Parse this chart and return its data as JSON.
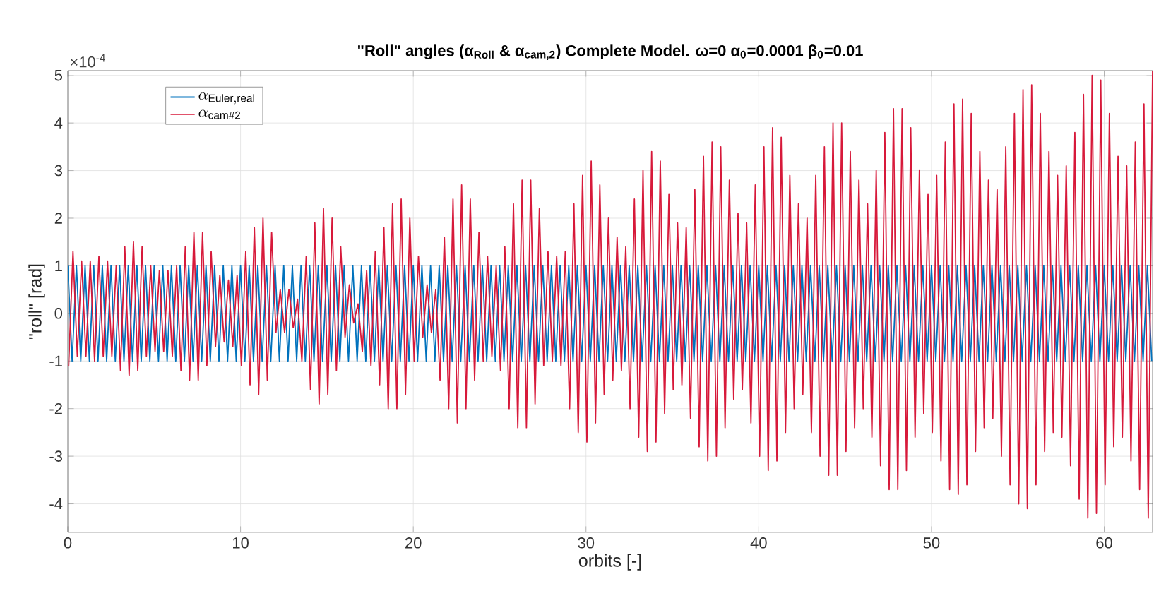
{
  "chart_data": {
    "type": "line",
    "title": "\"Roll\" angles (α$_{Roll}$ & α$_{cam,2}$) Complete Model. ω=0 α$_{0}$=0.0001 β$_{0}$=0.01",
    "xlabel": "orbits [-]",
    "ylabel": "\"roll\" [rad]",
    "annotations": [
      "×10$^{-4}$"
    ],
    "xlim": [
      0,
      62.8
    ],
    "ylim": [
      -4.6,
      5.1
    ],
    "xticks": [
      0,
      10,
      20,
      30,
      40,
      50,
      60
    ],
    "yticks": [
      -4,
      -3,
      -2,
      -1,
      0,
      1,
      2,
      3,
      4,
      5
    ],
    "grid": true,
    "legend": "top left",
    "line_style": "solid",
    "series": [
      {
        "name": "\\alpha_{\\mathrm{Euler,real}}",
        "color": "#0072bd",
        "x": [
          0,
          0.25,
          0.5,
          0.75,
          1,
          1.25,
          1.5,
          1.75,
          2,
          2.25,
          2.5,
          2.75,
          3,
          3.25,
          3.5,
          3.75,
          4,
          4.25,
          4.5,
          4.75,
          5,
          5.25,
          5.5,
          5.75,
          6,
          6.25,
          6.5,
          6.75,
          7,
          7.25,
          7.5,
          7.75,
          8,
          8.25,
          8.5,
          8.75,
          9,
          9.25,
          9.5,
          9.75,
          10,
          10.25,
          10.5,
          10.75,
          11,
          11.25,
          11.5,
          11.75,
          12,
          12.25,
          12.5,
          12.75,
          13,
          13.25,
          13.5,
          13.75,
          14,
          14.25,
          14.5,
          14.75,
          15,
          15.25,
          15.5,
          15.75,
          16,
          16.25,
          16.5,
          16.75,
          17,
          17.25,
          17.5,
          17.75,
          18,
          18.25,
          18.5,
          18.75,
          19,
          19.25,
          19.5,
          19.75,
          20,
          20.25,
          20.5,
          20.75,
          21,
          21.25,
          21.5,
          21.75,
          22,
          22.25,
          22.5,
          22.75,
          23,
          23.25,
          23.5,
          23.75,
          24,
          24.25,
          24.5,
          24.75,
          25,
          25.25,
          25.5,
          25.75,
          26,
          26.25,
          26.5,
          26.75,
          27,
          27.25,
          27.5,
          27.75,
          28,
          28.25,
          28.5,
          28.75,
          29,
          29.25,
          29.5,
          29.75,
          30,
          30.25,
          30.5,
          30.75,
          31,
          31.25,
          31.5,
          31.75,
          32,
          32.25,
          32.5,
          32.75,
          33,
          33.25,
          33.5,
          33.75,
          34,
          34.25,
          34.5,
          34.75,
          35,
          35.25,
          35.5,
          35.75,
          36,
          36.25,
          36.5,
          36.75,
          37,
          37.25,
          37.5,
          37.75,
          38,
          38.25,
          38.5,
          38.75,
          39,
          39.25,
          39.5,
          39.75,
          40,
          40.25,
          40.5,
          40.75,
          41,
          41.25,
          41.5,
          41.75,
          42,
          42.25,
          42.5,
          42.75,
          43,
          43.25,
          43.5,
          43.75,
          44,
          44.25,
          44.5,
          44.75,
          45,
          45.25,
          45.5,
          45.75,
          46,
          46.25,
          46.5,
          46.75,
          47,
          47.25,
          47.5,
          47.75,
          48,
          48.25,
          48.5,
          48.75,
          49,
          49.25,
          49.5,
          49.75,
          50,
          50.25,
          50.5,
          50.75,
          51,
          51.25,
          51.5,
          51.75,
          52,
          52.25,
          52.5,
          52.75,
          53,
          53.25,
          53.5,
          53.75,
          54,
          54.25,
          54.5,
          54.75,
          55,
          55.25,
          55.5,
          55.75,
          56,
          56.25,
          56.5,
          56.75,
          57,
          57.25,
          57.5,
          57.75,
          58,
          58.25,
          58.5,
          58.75,
          59,
          59.25,
          59.5,
          59.75,
          60,
          60.25,
          60.5,
          60.75,
          61,
          61.25,
          61.5,
          61.75,
          62,
          62.25,
          62.5,
          62.75
        ],
        "values": [
          1,
          -1,
          1,
          -1,
          1,
          -1,
          1,
          -1,
          1,
          -1,
          1,
          -1,
          1,
          -1,
          1,
          -1,
          1,
          -1,
          1,
          -1,
          1,
          -1,
          1,
          -1,
          1,
          -1,
          1,
          -1,
          1,
          -1,
          1,
          -1,
          1,
          -1,
          1,
          -1,
          1,
          -1,
          1,
          -1,
          1,
          -1,
          1,
          -1,
          1,
          -1,
          1,
          -1,
          1,
          -1,
          1,
          -1,
          1,
          -1,
          1,
          -1,
          1,
          -1,
          1,
          -1,
          1,
          -1,
          1,
          -1,
          1,
          -1,
          1,
          -1,
          1,
          -1,
          1,
          -1,
          1,
          -1,
          1,
          -1,
          1,
          -1,
          1,
          -1,
          1,
          -1,
          1,
          -1,
          1,
          -1,
          1,
          -1,
          1,
          -1,
          1,
          -1,
          1,
          -1,
          1,
          -1,
          1,
          -1,
          1,
          -1,
          1,
          -1,
          1,
          -1,
          1,
          -1,
          1,
          -1,
          1,
          -1,
          1,
          -1,
          1,
          -1,
          1,
          -1,
          1,
          -1,
          1,
          -1,
          1,
          -1,
          1,
          -1,
          1,
          -1,
          1,
          -1,
          1,
          -1,
          1,
          -1,
          1,
          -1,
          1,
          -1,
          1,
          -1,
          1,
          -1,
          1,
          -1,
          1,
          -1,
          1,
          -1,
          1,
          -1,
          1,
          -1,
          1,
          -1,
          1,
          -1,
          1,
          -1,
          1,
          -1,
          1,
          -1,
          1,
          -1,
          1,
          -1,
          1,
          -1,
          1,
          -1,
          1,
          -1,
          1,
          -1,
          1,
          -1,
          1,
          -1,
          1,
          -1,
          1,
          -1,
          1,
          -1,
          1,
          -1,
          1,
          -1,
          1,
          -1,
          1,
          -1,
          1,
          -1,
          1,
          -1,
          1,
          -1,
          1,
          -1,
          1,
          -1,
          1,
          -1,
          1,
          -1,
          1,
          -1,
          1,
          -1,
          1,
          -1,
          1,
          -1,
          1,
          -1,
          1,
          -1,
          1,
          -1,
          1,
          -1,
          1,
          -1,
          1,
          -1,
          1,
          -1,
          1,
          -1,
          1,
          -1,
          1,
          -1,
          1,
          -1,
          1,
          -1,
          1,
          -1,
          1,
          -1,
          1,
          -1,
          1,
          -1,
          1,
          -1,
          1,
          -1,
          1,
          -1,
          1,
          -1
        ]
      },
      {
        "name": "\\alpha_{\\mathrm{cam\\#2}}",
        "color": "#d7193a",
        "x": [
          0.05,
          0.3,
          0.55,
          0.8,
          1.05,
          1.3,
          1.55,
          1.8,
          2.05,
          2.3,
          2.55,
          2.8,
          3.05,
          3.3,
          3.55,
          3.8,
          4.05,
          4.3,
          4.55,
          4.8,
          5.05,
          5.3,
          5.55,
          5.8,
          6.05,
          6.3,
          6.55,
          6.8,
          7.05,
          7.3,
          7.55,
          7.8,
          8.05,
          8.3,
          8.55,
          8.8,
          9.05,
          9.3,
          9.55,
          9.8,
          10.05,
          10.3,
          10.55,
          10.8,
          11.05,
          11.3,
          11.55,
          11.8,
          12.05,
          12.3,
          12.55,
          12.8,
          13.05,
          13.3,
          13.55,
          13.8,
          14.05,
          14.3,
          14.55,
          14.8,
          15.05,
          15.3,
          15.55,
          15.8,
          16.05,
          16.3,
          16.55,
          16.8,
          17.05,
          17.3,
          17.55,
          17.8,
          18.05,
          18.3,
          18.55,
          18.8,
          19.05,
          19.3,
          19.55,
          19.8,
          20.05,
          20.3,
          20.55,
          20.8,
          21.05,
          21.3,
          21.55,
          21.8,
          22.05,
          22.3,
          22.55,
          22.8,
          23.05,
          23.3,
          23.55,
          23.8,
          24.05,
          24.3,
          24.55,
          24.8,
          25.05,
          25.3,
          25.55,
          25.8,
          26.05,
          26.3,
          26.55,
          26.8,
          27.05,
          27.3,
          27.55,
          27.8,
          28.05,
          28.3,
          28.55,
          28.8,
          29.05,
          29.3,
          29.55,
          29.8,
          30.05,
          30.3,
          30.55,
          30.8,
          31.05,
          31.3,
          31.55,
          31.8,
          32.05,
          32.3,
          32.55,
          32.8,
          33.05,
          33.3,
          33.55,
          33.8,
          34.05,
          34.3,
          34.55,
          34.8,
          35.05,
          35.3,
          35.55,
          35.8,
          36.05,
          36.3,
          36.55,
          36.8,
          37.05,
          37.3,
          37.55,
          37.8,
          38.05,
          38.3,
          38.55,
          38.8,
          39.05,
          39.3,
          39.55,
          39.8,
          40.05,
          40.3,
          40.55,
          40.8,
          41.05,
          41.3,
          41.55,
          41.8,
          42.05,
          42.3,
          42.55,
          42.8,
          43.05,
          43.3,
          43.55,
          43.8,
          44.05,
          44.3,
          44.55,
          44.8,
          45.05,
          45.3,
          45.55,
          45.8,
          46.05,
          46.3,
          46.55,
          46.8,
          47.05,
          47.3,
          47.55,
          47.8,
          48.05,
          48.3,
          48.55,
          48.8,
          49.05,
          49.3,
          49.55,
          49.8,
          50.05,
          50.3,
          50.55,
          50.8,
          51.05,
          51.3,
          51.55,
          51.8,
          52.05,
          52.3,
          52.55,
          52.8,
          53.05,
          53.3,
          53.55,
          53.8,
          54.05,
          54.3,
          54.55,
          54.8,
          55.05,
          55.3,
          55.55,
          55.8,
          56.05,
          56.3,
          56.55,
          56.8,
          57.05,
          57.3,
          57.55,
          57.8,
          58.05,
          58.3,
          58.55,
          58.8,
          59.05,
          59.3,
          59.55,
          59.8,
          60.05,
          60.3,
          60.55,
          60.8,
          61.05,
          61.3,
          61.55,
          61.8,
          62.05,
          62.3,
          62.55,
          62.8
        ],
        "values": [
          -1.1,
          1.3,
          -0.9,
          1.1,
          -0.9,
          1.1,
          -1.0,
          1.2,
          -0.9,
          1.1,
          -0.9,
          1.0,
          -1.2,
          1.4,
          -1.3,
          1.5,
          -1.2,
          1.4,
          -0.9,
          1.0,
          -0.8,
          0.9,
          -0.8,
          0.9,
          -0.9,
          1.0,
          -1.2,
          1.4,
          -1.4,
          1.7,
          -1.4,
          1.7,
          -1.1,
          1.3,
          -0.7,
          0.8,
          -0.6,
          0.7,
          -0.7,
          0.8,
          -1.1,
          1.3,
          -1.5,
          1.8,
          -1.7,
          2.0,
          -1.4,
          1.7,
          -0.4,
          0.5,
          -0.4,
          0.5,
          -0.3,
          0.3,
          -1.0,
          1.2,
          -1.6,
          1.9,
          -1.9,
          2.2,
          -1.7,
          2.0,
          -1.2,
          1.4,
          -0.5,
          0.6,
          -0.2,
          0.2,
          -0.8,
          0.9,
          -1.1,
          1.3,
          -1.5,
          1.8,
          -2.0,
          2.3,
          -2.0,
          2.4,
          -1.7,
          2.0,
          -1.0,
          1.2,
          -0.5,
          0.6,
          -0.4,
          0.5,
          -1.4,
          1.6,
          -2.0,
          2.4,
          -2.3,
          2.7,
          -2.0,
          2.4,
          -1.4,
          1.7,
          -1.0,
          1.2,
          -0.9,
          1.0,
          -1.2,
          1.4,
          -2.0,
          2.3,
          -2.4,
          2.8,
          -2.4,
          2.8,
          -1.9,
          2.2,
          -1.1,
          1.3,
          -1.0,
          1.2,
          -1.1,
          1.3,
          -2.0,
          2.3,
          -2.5,
          2.9,
          -2.7,
          3.2,
          -2.3,
          2.7,
          -1.7,
          2.0,
          -1.4,
          1.6,
          -1.2,
          1.4,
          -2.0,
          2.4,
          -2.6,
          3.0,
          -2.9,
          3.4,
          -2.7,
          3.2,
          -2.1,
          2.5,
          -1.6,
          1.9,
          -1.5,
          1.8,
          -2.2,
          2.6,
          -2.8,
          3.3,
          -3.1,
          3.6,
          -3.0,
          3.5,
          -2.4,
          2.8,
          -1.8,
          2.1,
          -1.6,
          1.9,
          -2.3,
          2.7,
          -3.0,
          3.5,
          -3.3,
          3.9,
          -3.1,
          3.7,
          -2.5,
          2.9,
          -2.0,
          2.3,
          -1.7,
          2.0,
          -2.5,
          2.9,
          -3.0,
          3.5,
          -3.4,
          4.0,
          -3.4,
          4.0,
          -2.9,
          3.4,
          -2.4,
          2.8,
          -2.0,
          2.3,
          -2.6,
          3.0,
          -3.2,
          3.8,
          -3.7,
          4.3,
          -3.7,
          4.3,
          -3.3,
          3.9,
          -2.6,
          3.0,
          -2.1,
          2.5,
          -2.5,
          2.9,
          -3.1,
          3.6,
          -3.7,
          4.4,
          -3.8,
          4.5,
          -3.6,
          4.2,
          -2.9,
          3.4,
          -2.4,
          2.8,
          -2.2,
          2.6,
          -3.0,
          3.5,
          -3.6,
          4.2,
          -4.0,
          4.7,
          -4.1,
          4.8,
          -3.6,
          4.2,
          -2.9,
          3.4,
          -2.5,
          2.9,
          -2.6,
          3.1,
          -3.2,
          3.8,
          -3.9,
          4.6,
          -4.3,
          5.0,
          -4.2,
          4.9,
          -3.6,
          4.2,
          -2.8,
          3.3,
          -2.6,
          3.1,
          -3.1,
          3.6,
          -3.7,
          4.4,
          -4.3,
          5.1
        ]
      }
    ]
  }
}
